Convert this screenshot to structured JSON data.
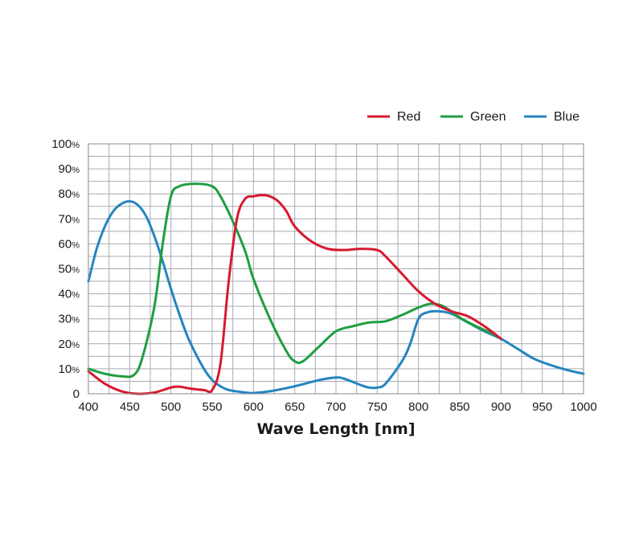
{
  "chart_data": {
    "type": "line",
    "title": "",
    "xlabel": "Wave Length [nm]",
    "ylabel": "",
    "xlim": [
      400,
      1000
    ],
    "ylim": [
      0,
      100
    ],
    "x_ticks": [
      400,
      450,
      500,
      550,
      600,
      650,
      700,
      750,
      800,
      850,
      900,
      950,
      1000
    ],
    "y_ticks": [
      {
        "value": 0,
        "label": "0",
        "unit": ""
      },
      {
        "value": 10,
        "label": "10",
        "unit": "%"
      },
      {
        "value": 20,
        "label": "20",
        "unit": "%"
      },
      {
        "value": 30,
        "label": "30",
        "unit": "%"
      },
      {
        "value": 40,
        "label": "40",
        "unit": "%"
      },
      {
        "value": 50,
        "label": "50",
        "unit": "%"
      },
      {
        "value": 60,
        "label": "60",
        "unit": "%"
      },
      {
        "value": 70,
        "label": "70",
        "unit": "%"
      },
      {
        "value": 80,
        "label": "80",
        "unit": "%"
      },
      {
        "value": 90,
        "label": "90",
        "unit": "%"
      },
      {
        "value": 100,
        "label": "100",
        "unit": "%"
      }
    ],
    "grid": true,
    "legend_position": "top-right",
    "series": [
      {
        "name": "Red",
        "color": "#d7192e",
        "points": [
          [
            400,
            9
          ],
          [
            420,
            4
          ],
          [
            440,
            1
          ],
          [
            460,
            0
          ],
          [
            480,
            0.5
          ],
          [
            500,
            2.5
          ],
          [
            510,
            2.8
          ],
          [
            525,
            2
          ],
          [
            540,
            1.5
          ],
          [
            550,
            1.5
          ],
          [
            560,
            12
          ],
          [
            570,
            45
          ],
          [
            580,
            70
          ],
          [
            590,
            78
          ],
          [
            600,
            79
          ],
          [
            610,
            79.5
          ],
          [
            620,
            79
          ],
          [
            630,
            77
          ],
          [
            640,
            73
          ],
          [
            650,
            67
          ],
          [
            670,
            61
          ],
          [
            690,
            58
          ],
          [
            710,
            57.5
          ],
          [
            730,
            58
          ],
          [
            750,
            57.5
          ],
          [
            760,
            55
          ],
          [
            780,
            48
          ],
          [
            800,
            41
          ],
          [
            820,
            36
          ],
          [
            840,
            33
          ],
          [
            860,
            31
          ],
          [
            880,
            27
          ],
          [
            900,
            22
          ]
        ]
      },
      {
        "name": "Green",
        "color": "#1e9e40",
        "points": [
          [
            400,
            10
          ],
          [
            420,
            8
          ],
          [
            440,
            7
          ],
          [
            455,
            7.5
          ],
          [
            465,
            14
          ],
          [
            480,
            35
          ],
          [
            490,
            60
          ],
          [
            500,
            79
          ],
          [
            510,
            83
          ],
          [
            530,
            84
          ],
          [
            550,
            83
          ],
          [
            560,
            79
          ],
          [
            575,
            69
          ],
          [
            590,
            57
          ],
          [
            600,
            46
          ],
          [
            620,
            30
          ],
          [
            640,
            17
          ],
          [
            650,
            13
          ],
          [
            660,
            13
          ],
          [
            680,
            19
          ],
          [
            700,
            25
          ],
          [
            720,
            27
          ],
          [
            740,
            28.5
          ],
          [
            760,
            29
          ],
          [
            780,
            31.5
          ],
          [
            800,
            34.5
          ],
          [
            815,
            36
          ],
          [
            830,
            35
          ],
          [
            850,
            30.5
          ],
          [
            870,
            27
          ],
          [
            890,
            24
          ],
          [
            900,
            22
          ]
        ]
      },
      {
        "name": "Blue",
        "color": "#2485bf",
        "points": [
          [
            400,
            45
          ],
          [
            410,
            58
          ],
          [
            420,
            67
          ],
          [
            430,
            73
          ],
          [
            440,
            76
          ],
          [
            450,
            77
          ],
          [
            460,
            75.5
          ],
          [
            470,
            71
          ],
          [
            480,
            63
          ],
          [
            490,
            53
          ],
          [
            500,
            42
          ],
          [
            510,
            32
          ],
          [
            520,
            23
          ],
          [
            530,
            16
          ],
          [
            540,
            10
          ],
          [
            550,
            5.5
          ],
          [
            560,
            3
          ],
          [
            570,
            1.5
          ],
          [
            590,
            0.5
          ],
          [
            600,
            0.3
          ],
          [
            620,
            1
          ],
          [
            650,
            3
          ],
          [
            680,
            5.5
          ],
          [
            700,
            6.5
          ],
          [
            710,
            6
          ],
          [
            730,
            3.5
          ],
          [
            740,
            2.5
          ],
          [
            750,
            2.5
          ],
          [
            760,
            4
          ],
          [
            780,
            13
          ],
          [
            790,
            20
          ],
          [
            800,
            30
          ],
          [
            810,
            32.5
          ],
          [
            825,
            33
          ],
          [
            840,
            32
          ],
          [
            860,
            28.5
          ],
          [
            880,
            25
          ],
          [
            900,
            22
          ],
          [
            920,
            18
          ],
          [
            940,
            14
          ],
          [
            960,
            11.5
          ],
          [
            980,
            9.5
          ],
          [
            1000,
            8
          ]
        ]
      }
    ]
  }
}
